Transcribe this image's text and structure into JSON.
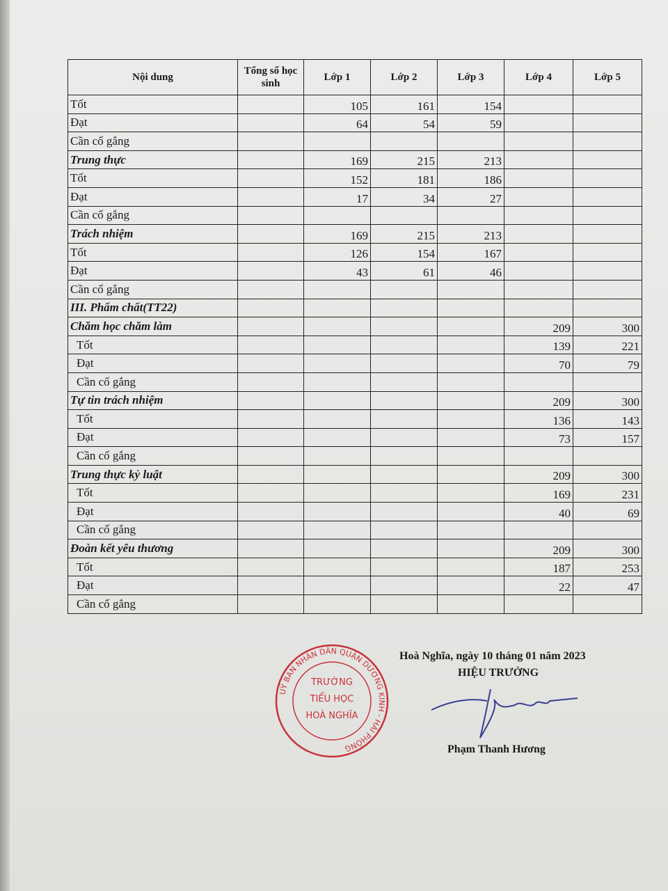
{
  "table": {
    "headers": [
      "Nội dung",
      "Tổng số học sinh",
      "Lớp 1",
      "Lớp 2",
      "Lớp 3",
      "Lớp 4",
      "Lớp 5"
    ],
    "rows": [
      {
        "label": "Tốt",
        "style": "plain",
        "values": [
          "",
          "105",
          "161",
          "154",
          "",
          ""
        ]
      },
      {
        "label": "Đạt",
        "style": "plain",
        "values": [
          "",
          "64",
          "54",
          "59",
          "",
          ""
        ]
      },
      {
        "label": "Cần cố gắng",
        "style": "plain",
        "values": [
          "",
          "",
          "",
          "",
          "",
          ""
        ]
      },
      {
        "label": "Trung thực",
        "style": "bi",
        "values": [
          "",
          "169",
          "215",
          "213",
          "",
          ""
        ]
      },
      {
        "label": "Tốt",
        "style": "plain",
        "values": [
          "",
          "152",
          "181",
          "186",
          "",
          ""
        ]
      },
      {
        "label": "Đạt",
        "style": "plain",
        "values": [
          "",
          "17",
          "34",
          "27",
          "",
          ""
        ]
      },
      {
        "label": "Cần cố gắng",
        "style": "plain",
        "values": [
          "",
          "",
          "",
          "",
          "",
          ""
        ]
      },
      {
        "label": "Trách nhiệm",
        "style": "bi",
        "values": [
          "",
          "169",
          "215",
          "213",
          "",
          ""
        ]
      },
      {
        "label": "Tốt",
        "style": "plain",
        "values": [
          "",
          "126",
          "154",
          "167",
          "",
          ""
        ]
      },
      {
        "label": "Đạt",
        "style": "plain",
        "values": [
          "",
          "43",
          "61",
          "46",
          "",
          ""
        ]
      },
      {
        "label": "Cần cố gắng",
        "style": "plain",
        "values": [
          "",
          "",
          "",
          "",
          "",
          ""
        ]
      },
      {
        "label": "III. Phẩm chất(TT22)",
        "style": "bi",
        "values": [
          "",
          "",
          "",
          "",
          "",
          ""
        ]
      },
      {
        "label": "Chăm học chăm làm",
        "style": "bi",
        "values": [
          "",
          "",
          "",
          "",
          "209",
          "300"
        ]
      },
      {
        "label": "Tốt",
        "style": "ind",
        "values": [
          "",
          "",
          "",
          "",
          "139",
          "221"
        ]
      },
      {
        "label": "Đạt",
        "style": "ind",
        "values": [
          "",
          "",
          "",
          "",
          "70",
          "79"
        ]
      },
      {
        "label": "Cần cố gắng",
        "style": "ind",
        "values": [
          "",
          "",
          "",
          "",
          "",
          ""
        ]
      },
      {
        "label": "Tự tin trách nhiệm",
        "style": "bi",
        "values": [
          "",
          "",
          "",
          "",
          "209",
          "300"
        ]
      },
      {
        "label": "Tốt",
        "style": "ind",
        "values": [
          "",
          "",
          "",
          "",
          "136",
          "143"
        ]
      },
      {
        "label": "Đạt",
        "style": "ind",
        "values": [
          "",
          "",
          "",
          "",
          "73",
          "157"
        ]
      },
      {
        "label": "Cần cố gắng",
        "style": "ind",
        "values": [
          "",
          "",
          "",
          "",
          "",
          ""
        ]
      },
      {
        "label": "Trung thực kỷ luật",
        "style": "bi",
        "values": [
          "",
          "",
          "",
          "",
          "209",
          "300"
        ]
      },
      {
        "label": "Tốt",
        "style": "ind",
        "values": [
          "",
          "",
          "",
          "",
          "169",
          "231"
        ]
      },
      {
        "label": "Đạt",
        "style": "ind",
        "values": [
          "",
          "",
          "",
          "",
          "40",
          "69"
        ]
      },
      {
        "label": "Cần cố gắng",
        "style": "ind",
        "values": [
          "",
          "",
          "",
          "",
          "",
          ""
        ]
      },
      {
        "label": "Đoàn kết yêu thương",
        "style": "bi",
        "values": [
          "",
          "",
          "",
          "",
          "209",
          "300"
        ]
      },
      {
        "label": "Tốt",
        "style": "ind",
        "values": [
          "",
          "",
          "",
          "",
          "187",
          "253"
        ]
      },
      {
        "label": "Đạt",
        "style": "ind",
        "values": [
          "",
          "",
          "",
          "",
          "22",
          "47"
        ]
      },
      {
        "label": "Cần cố gắng",
        "style": "ind",
        "values": [
          "",
          "",
          "",
          "",
          "",
          ""
        ]
      }
    ]
  },
  "footer": {
    "date_line": "Hoà Nghĩa, ngày 10 tháng 01 năm 2023",
    "role": "HIỆU TRƯỞNG",
    "signer": "Phạm Thanh Hương"
  },
  "stamp": {
    "ring_text": "UỶ BAN NHÂN DÂN QUẬN DƯƠNG KINH - HẢI PHÒNG",
    "center_lines": [
      "TRƯỜNG",
      "TIỂU HỌC",
      "HOÀ NGHĨA"
    ],
    "color": "#c8323a"
  },
  "colors": {
    "ink": "#1a1a1a",
    "paper": "#ececea",
    "signature": "#3a3f8f"
  }
}
